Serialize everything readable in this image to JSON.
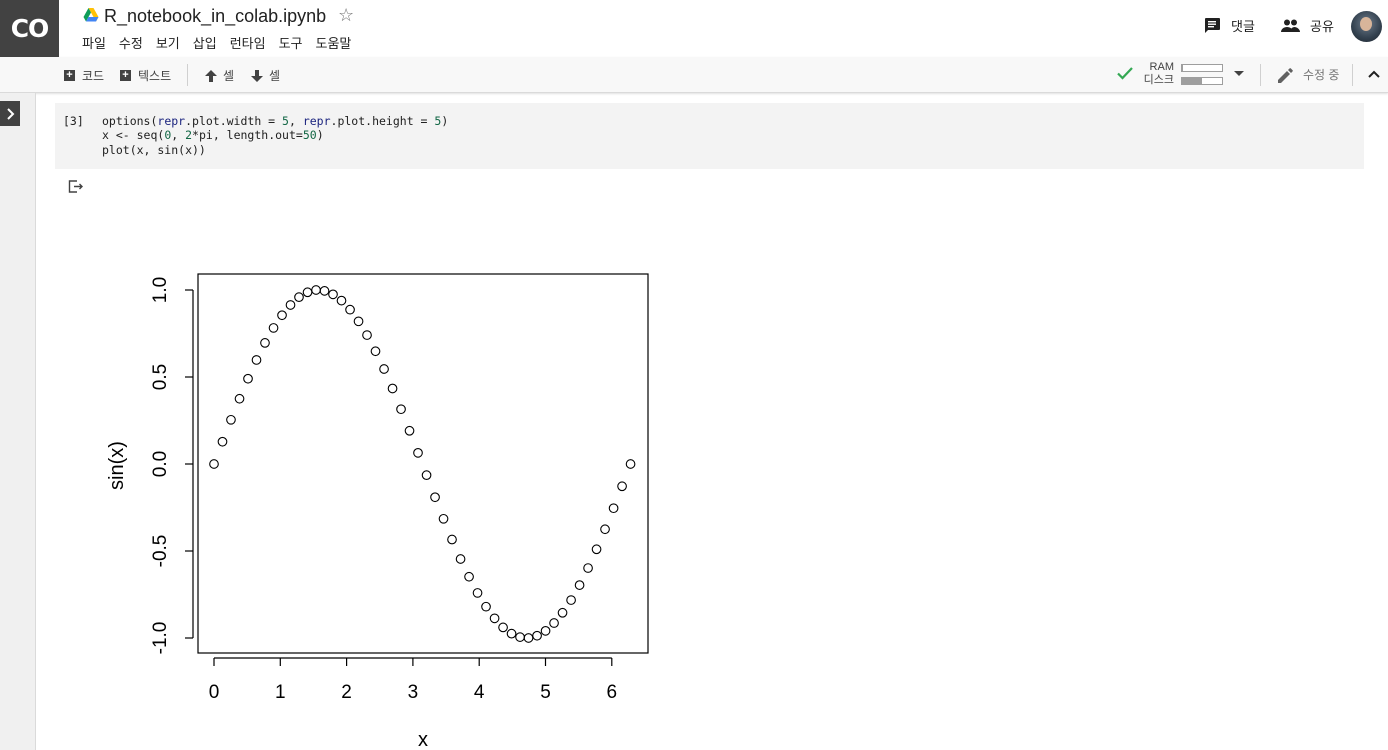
{
  "header": {
    "logo_text": "CO",
    "doc_title": "R_notebook_in_colab.ipynb",
    "star_icon": "star-outline-icon",
    "menu": [
      "파일",
      "수정",
      "보기",
      "삽입",
      "런타임",
      "도구",
      "도움말"
    ],
    "comments_label": "댓글",
    "share_label": "공유"
  },
  "toolbar": {
    "add_code_label": "코드",
    "add_text_label": "텍스트",
    "cell_up_label": "셀",
    "cell_down_label": "셀",
    "ram_label": "RAM",
    "disk_label": "디스크",
    "ram_fraction": 0.03,
    "disk_fraction": 0.5,
    "edit_status": "수정 중"
  },
  "cell": {
    "exec_count": "[3]",
    "code_lines": [
      "options(repr.plot.width = 5, repr.plot.height = 5)",
      "x <- seq(0, 2*pi, length.out=50)",
      "plot(x, sin(x))"
    ]
  },
  "chart_data": {
    "type": "scatter",
    "title": "",
    "xlabel": "x",
    "ylabel": "sin(x)",
    "xlim": [
      0,
      6.5
    ],
    "ylim": [
      -1.0,
      1.0
    ],
    "x_ticks": [
      "0",
      "1",
      "2",
      "3",
      "4",
      "5",
      "6"
    ],
    "y_ticks": [
      "-1.0",
      "-0.5",
      "0.0",
      "0.5",
      "1.0"
    ],
    "marker": "open-circle",
    "grid": false,
    "x": [
      0.0,
      0.128,
      0.256,
      0.385,
      0.513,
      0.641,
      0.769,
      0.898,
      1.026,
      1.154,
      1.282,
      1.411,
      1.539,
      1.667,
      1.795,
      1.923,
      2.052,
      2.18,
      2.308,
      2.436,
      2.565,
      2.693,
      2.821,
      2.949,
      3.077,
      3.206,
      3.334,
      3.462,
      3.59,
      3.719,
      3.847,
      3.975,
      4.103,
      4.232,
      4.36,
      4.488,
      4.616,
      4.744,
      4.873,
      5.001,
      5.129,
      5.257,
      5.386,
      5.514,
      5.642,
      5.77,
      5.898,
      6.027,
      6.155,
      6.283
    ],
    "y": [
      0.0,
      0.128,
      0.254,
      0.375,
      0.49,
      0.598,
      0.696,
      0.782,
      0.855,
      0.914,
      0.959,
      0.987,
      1.0,
      0.995,
      0.975,
      0.939,
      0.887,
      0.82,
      0.741,
      0.648,
      0.546,
      0.434,
      0.315,
      0.191,
      0.064,
      -0.064,
      -0.191,
      -0.315,
      -0.434,
      -0.546,
      -0.648,
      -0.741,
      -0.82,
      -0.887,
      -0.939,
      -0.975,
      -0.995,
      -1.0,
      -0.987,
      -0.959,
      -0.914,
      -0.855,
      -0.782,
      -0.696,
      -0.598,
      -0.49,
      -0.375,
      -0.254,
      -0.128,
      0.0
    ]
  }
}
